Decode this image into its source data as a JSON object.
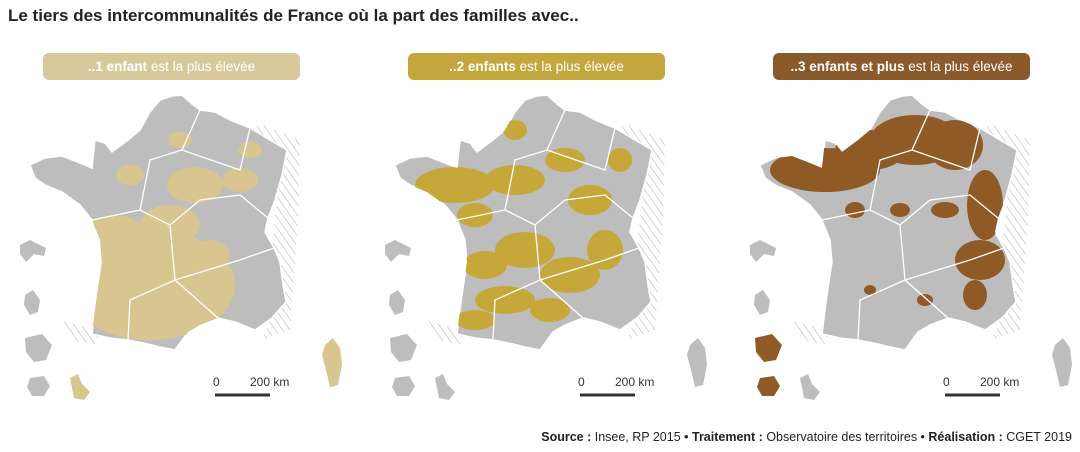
{
  "header": {
    "title": "Le tiers des intercommunalités de France où la part des familles avec.."
  },
  "maps": [
    {
      "label_bold": "..1 enfant",
      "label_rest": " est la plus élevée",
      "color": "#d9c58f",
      "pill_color": "#d8c99b"
    },
    {
      "label_bold": "..2 enfants",
      "label_rest": " est la plus élevée",
      "color": "#c6a83a",
      "pill_color": "#c4a73c"
    },
    {
      "label_bold": "..3 enfants et plus",
      "label_rest": " est la plus élevée",
      "color": "#8f5a26",
      "pill_color": "#8b5a2b"
    }
  ],
  "scale": {
    "start": "0",
    "end": "200 km"
  },
  "source": [
    {
      "bold": "Source :",
      "text": " Insee, RP 2015 • "
    },
    {
      "bold": "Traitement :",
      "text": " Observatoire des territoires • "
    },
    {
      "bold": "Réalisation :",
      "text": " CGET 2019"
    }
  ]
}
